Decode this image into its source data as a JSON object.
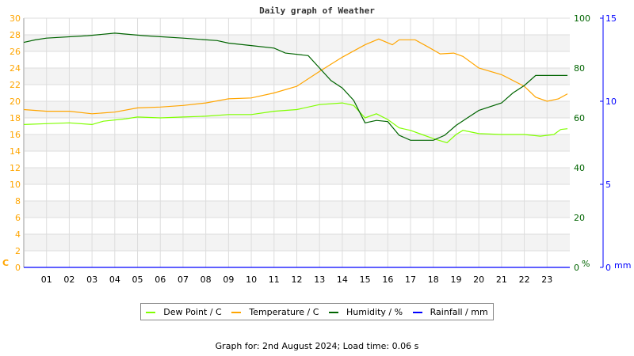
{
  "chart_data": {
    "type": "line",
    "title": "Daily graph of Weather",
    "x_ticks": [
      "01",
      "02",
      "03",
      "04",
      "05",
      "06",
      "07",
      "08",
      "09",
      "10",
      "11",
      "12",
      "13",
      "14",
      "15",
      "16",
      "17",
      "18",
      "19",
      "20",
      "21",
      "22",
      "23"
    ],
    "xlim": [
      0,
      24
    ],
    "grid": true,
    "left_axis": {
      "unit": "C",
      "range": [
        0,
        30
      ],
      "ticks": [
        0,
        2,
        4,
        6,
        8,
        10,
        12,
        14,
        16,
        18,
        20,
        22,
        24,
        26,
        28,
        30
      ],
      "color": "#ffa500"
    },
    "humidity_axis": {
      "unit": "%",
      "range": [
        0,
        100
      ],
      "ticks": [
        0,
        20,
        40,
        60,
        80,
        100
      ],
      "color": "#006400"
    },
    "rain_axis": {
      "unit": "mm",
      "range": [
        0,
        15
      ],
      "ticks": [
        0,
        5,
        10,
        15
      ],
      "color": "#0000ff"
    },
    "legend_position": "bottom",
    "series": [
      {
        "name": "Dew Point / C",
        "color": "#80ff00",
        "axis": "left",
        "x": [
          0,
          1,
          2,
          3,
          3.5,
          4.5,
          5,
          6,
          7,
          8,
          9,
          10,
          11,
          12,
          13,
          14,
          14.5,
          15,
          15.5,
          16,
          16.5,
          17,
          17.5,
          18,
          18.6,
          19,
          19.3,
          20,
          21,
          22,
          22.7,
          23.3,
          23.6,
          23.9
        ],
        "y": [
          17.2,
          17.3,
          17.4,
          17.2,
          17.6,
          17.9,
          18.1,
          18.0,
          18.1,
          18.2,
          18.4,
          18.4,
          18.8,
          19.0,
          19.6,
          19.8,
          19.5,
          18.0,
          18.5,
          17.8,
          16.8,
          16.5,
          16.0,
          15.5,
          15.0,
          16.0,
          16.5,
          16.1,
          16.0,
          16.0,
          15.8,
          16.0,
          16.6,
          16.7
        ]
      },
      {
        "name": "Temperature / C",
        "color": "#ffa500",
        "axis": "left",
        "x": [
          0,
          1,
          2,
          3,
          4,
          5,
          6,
          7,
          8,
          9,
          10,
          11,
          12,
          13,
          14,
          15,
          15.6,
          16.2,
          16.5,
          17.2,
          17.8,
          18.3,
          18.9,
          19.3,
          20,
          21,
          22,
          22.5,
          23,
          23.5,
          23.9
        ],
        "y": [
          19.0,
          18.8,
          18.8,
          18.5,
          18.7,
          19.2,
          19.3,
          19.5,
          19.8,
          20.3,
          20.4,
          21.0,
          21.8,
          23.6,
          25.3,
          26.8,
          27.5,
          26.8,
          27.4,
          27.4,
          26.5,
          25.7,
          25.8,
          25.4,
          24.0,
          23.2,
          21.8,
          20.5,
          20.0,
          20.3,
          20.9
        ]
      },
      {
        "name": "Humidity / %",
        "color": "#006400",
        "axis": "humidity",
        "x": [
          0,
          0.5,
          1,
          2.8,
          4,
          5.3,
          7,
          8.5,
          9,
          10,
          11,
          11.5,
          12.5,
          13,
          13.5,
          14,
          14.5,
          15,
          15.5,
          16,
          16.5,
          17,
          18,
          18.5,
          19,
          19.5,
          20,
          21,
          21.5,
          22,
          22.5,
          23,
          23.9
        ],
        "y": [
          90.3,
          91.3,
          92,
          93,
          94,
          93,
          92,
          91,
          90,
          89,
          88,
          86,
          85,
          80,
          75,
          72,
          67,
          58,
          59,
          58.5,
          53,
          51,
          51,
          53,
          57,
          60,
          63,
          66,
          70,
          73,
          77,
          77,
          77
        ]
      },
      {
        "name": "Rainfall / mm",
        "color": "#0000ff",
        "axis": "rain",
        "x": [
          0,
          24
        ],
        "y": [
          0,
          0
        ]
      }
    ]
  },
  "footer": "Graph for: 2nd August 2024; Load time: 0.06 s"
}
